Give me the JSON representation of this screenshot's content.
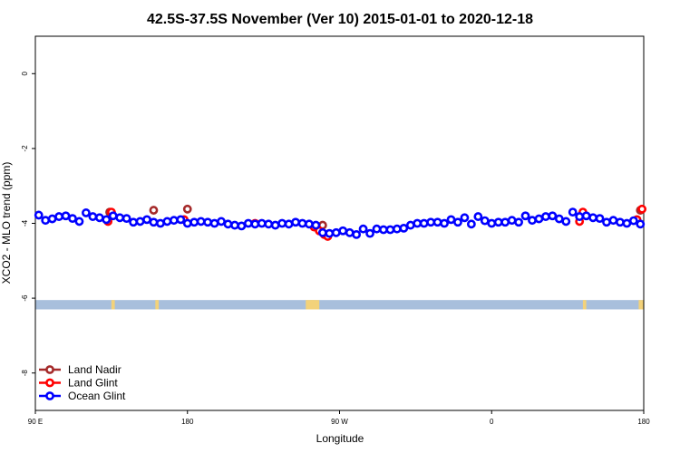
{
  "chart_data": {
    "type": "scatter",
    "title": "42.5S-37.5S November (Ver 10)   2015-01-01 to 2020-12-18",
    "xlabel": "Longitude",
    "ylabel": "XCO2 - MLO trend (ppm)",
    "xlim": [
      90,
      450
    ],
    "ylim": [
      -9,
      1
    ],
    "x_ticks": [
      {
        "value": 90,
        "label": "90 E"
      },
      {
        "value": 180,
        "label": "180"
      },
      {
        "value": 270,
        "label": "90 W"
      },
      {
        "value": 360,
        "label": "0"
      },
      {
        "value": 450,
        "label": "180"
      }
    ],
    "y_ticks": [
      {
        "value": 0,
        "label": "0"
      },
      {
        "value": -2,
        "label": "-2"
      },
      {
        "value": -4,
        "label": "-4"
      },
      {
        "value": -6,
        "label": "-6"
      },
      {
        "value": -8,
        "label": "-8"
      }
    ],
    "grid": false,
    "legend_position": "bottom-left",
    "land_band": {
      "y_range": [
        -6.3,
        -6.05
      ],
      "ocean_color": "#a8bfdc",
      "land_color": "#f3d27a",
      "land_segments": [
        [
          135,
          137
        ],
        [
          161,
          163
        ],
        [
          250,
          255
        ],
        [
          253,
          258
        ],
        [
          414,
          416
        ],
        [
          447,
          450
        ]
      ]
    },
    "series": [
      {
        "name": "Land Nadir",
        "color": "#a52a2a",
        "points": [
          [
            134,
            -3.7
          ],
          [
            160,
            -3.65
          ],
          [
            180,
            -3.62
          ],
          [
            260,
            -4.05
          ],
          [
            414,
            -3.72
          ],
          [
            448,
            -3.65
          ]
        ]
      },
      {
        "name": "Land Glint",
        "color": "#ff0000",
        "points": [
          [
            133,
            -3.95
          ],
          [
            135,
            -3.7
          ],
          [
            178,
            -3.9
          ],
          [
            220,
            -4.0
          ],
          [
            255,
            -4.1
          ],
          [
            258,
            -4.2
          ],
          [
            261,
            -4.3
          ],
          [
            263,
            -4.35
          ],
          [
            412,
            -3.95
          ],
          [
            414,
            -3.7
          ],
          [
            446,
            -3.9
          ],
          [
            449,
            -3.62
          ]
        ]
      },
      {
        "name": "Ocean Glint",
        "color": "#0000ff",
        "points": [
          [
            92,
            -3.78
          ],
          [
            96,
            -3.92
          ],
          [
            100,
            -3.88
          ],
          [
            104,
            -3.82
          ],
          [
            108,
            -3.8
          ],
          [
            112,
            -3.87
          ],
          [
            116,
            -3.95
          ],
          [
            120,
            -3.72
          ],
          [
            124,
            -3.82
          ],
          [
            128,
            -3.85
          ],
          [
            132,
            -3.9
          ],
          [
            136,
            -3.8
          ],
          [
            140,
            -3.85
          ],
          [
            144,
            -3.87
          ],
          [
            148,
            -3.97
          ],
          [
            152,
            -3.95
          ],
          [
            156,
            -3.9
          ],
          [
            160,
            -3.97
          ],
          [
            164,
            -4.0
          ],
          [
            168,
            -3.95
          ],
          [
            172,
            -3.92
          ],
          [
            176,
            -3.9
          ],
          [
            180,
            -4.0
          ],
          [
            184,
            -3.97
          ],
          [
            188,
            -3.95
          ],
          [
            192,
            -3.97
          ],
          [
            196,
            -4.0
          ],
          [
            200,
            -3.95
          ],
          [
            204,
            -4.02
          ],
          [
            208,
            -4.05
          ],
          [
            212,
            -4.07
          ],
          [
            216,
            -4.0
          ],
          [
            220,
            -4.02
          ],
          [
            224,
            -4.0
          ],
          [
            228,
            -4.02
          ],
          [
            232,
            -4.05
          ],
          [
            236,
            -4.0
          ],
          [
            240,
            -4.02
          ],
          [
            244,
            -3.97
          ],
          [
            248,
            -4.0
          ],
          [
            252,
            -4.02
          ],
          [
            256,
            -4.05
          ],
          [
            260,
            -4.25
          ],
          [
            264,
            -4.27
          ],
          [
            268,
            -4.25
          ],
          [
            272,
            -4.2
          ],
          [
            276,
            -4.25
          ],
          [
            280,
            -4.3
          ],
          [
            284,
            -4.15
          ],
          [
            288,
            -4.27
          ],
          [
            292,
            -4.15
          ],
          [
            296,
            -4.17
          ],
          [
            300,
            -4.17
          ],
          [
            304,
            -4.15
          ],
          [
            308,
            -4.13
          ],
          [
            312,
            -4.05
          ],
          [
            316,
            -4.0
          ],
          [
            320,
            -4.0
          ],
          [
            324,
            -3.97
          ],
          [
            328,
            -3.97
          ],
          [
            332,
            -4.0
          ],
          [
            336,
            -3.9
          ],
          [
            340,
            -3.97
          ],
          [
            344,
            -3.85
          ],
          [
            348,
            -4.02
          ],
          [
            352,
            -3.82
          ],
          [
            356,
            -3.93
          ],
          [
            360,
            -4.0
          ],
          [
            364,
            -3.97
          ],
          [
            368,
            -3.97
          ],
          [
            372,
            -3.92
          ],
          [
            376,
            -3.97
          ],
          [
            380,
            -3.8
          ],
          [
            384,
            -3.92
          ],
          [
            388,
            -3.88
          ],
          [
            392,
            -3.82
          ],
          [
            396,
            -3.8
          ],
          [
            400,
            -3.88
          ],
          [
            404,
            -3.95
          ],
          [
            408,
            -3.7
          ],
          [
            412,
            -3.82
          ],
          [
            416,
            -3.8
          ],
          [
            420,
            -3.85
          ],
          [
            424,
            -3.87
          ],
          [
            428,
            -3.97
          ],
          [
            432,
            -3.92
          ],
          [
            436,
            -3.97
          ],
          [
            440,
            -4.0
          ],
          [
            444,
            -3.93
          ],
          [
            448,
            -4.02
          ]
        ]
      }
    ]
  }
}
